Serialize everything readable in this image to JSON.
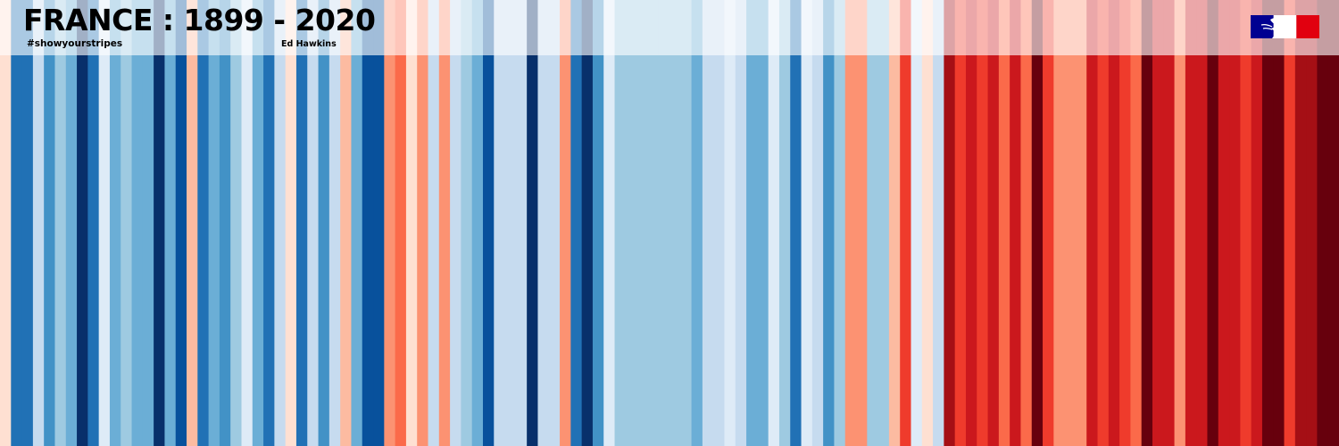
{
  "header": {
    "title": "FRANCE : 1899 - 2020",
    "hashtag": "#showyourstripes",
    "author": "Ed Hawkins"
  },
  "logo": {
    "name": "marianne-logo",
    "colors": [
      "#000091",
      "#ffffff",
      "#e1000f"
    ]
  },
  "chart_data": {
    "type": "heatmap",
    "title": "FRANCE : 1899 - 2020",
    "x_range": [
      1899,
      2020
    ],
    "palette": [
      "#08306b",
      "#08519c",
      "#2171b5",
      "#4292c6",
      "#6baed6",
      "#9ecae1",
      "#c6dbef",
      "#deebf7",
      "#fee0d2",
      "#fcbba1",
      "#fc9272",
      "#fb6a4a",
      "#ef3b2c",
      "#cb181d",
      "#a50f15",
      "#67000d"
    ],
    "value_levels": "0 = coldest, 15 = warmest",
    "x": [
      1899,
      1900,
      1901,
      1902,
      1903,
      1904,
      1905,
      1906,
      1907,
      1908,
      1909,
      1910,
      1911,
      1912,
      1913,
      1914,
      1915,
      1916,
      1917,
      1918,
      1919,
      1920,
      1921,
      1922,
      1923,
      1924,
      1925,
      1926,
      1927,
      1928,
      1929,
      1930,
      1931,
      1932,
      1933,
      1934,
      1935,
      1936,
      1937,
      1938,
      1939,
      1940,
      1941,
      1942,
      1943,
      1944,
      1945,
      1946,
      1947,
      1948,
      1949,
      1950,
      1951,
      1952,
      1953,
      1954,
      1955,
      1956,
      1957,
      1958,
      1959,
      1960,
      1961,
      1962,
      1963,
      1964,
      1965,
      1966,
      1967,
      1968,
      1969,
      1970,
      1971,
      1972,
      1973,
      1974,
      1975,
      1976,
      1977,
      1978,
      1979,
      1980,
      1981,
      1982,
      1983,
      1984,
      1985,
      1986,
      1987,
      1988,
      1989,
      1990,
      1991,
      1992,
      1993,
      1994,
      1995,
      1996,
      1997,
      1998,
      1999,
      2000,
      2001,
      2002,
      2003,
      2004,
      2005,
      2006,
      2007,
      2008,
      2009,
      2010,
      2011,
      2012,
      2013,
      2014,
      2015,
      2016,
      2017,
      2018,
      2019,
      2020
    ],
    "values": [
      8,
      2,
      2,
      6,
      3,
      5,
      4,
      0,
      2,
      7,
      4,
      5,
      4,
      4,
      0,
      4,
      1,
      9,
      2,
      4,
      3,
      5,
      7,
      4,
      2,
      6,
      8,
      2,
      6,
      3,
      6,
      9,
      4,
      1,
      1,
      10,
      11,
      8,
      10,
      6,
      10,
      6,
      5,
      4,
      1,
      6,
      6,
      6,
      0,
      6,
      6,
      10,
      2,
      0,
      3,
      7,
      5,
      5,
      5,
      5,
      5,
      5,
      5,
      4,
      6,
      6,
      7,
      6,
      4,
      4,
      7,
      5,
      2,
      7,
      6,
      3,
      5,
      10,
      10,
      5,
      5,
      9,
      12,
      7,
      8,
      6,
      14,
      12,
      13,
      12,
      13,
      11,
      13,
      11,
      15,
      12,
      10,
      10,
      10,
      13,
      12,
      13,
      12,
      11,
      15,
      13,
      13,
      10,
      13,
      13,
      15,
      13,
      13,
      12,
      13,
      15,
      15,
      12,
      14,
      14,
      15,
      15
    ]
  }
}
